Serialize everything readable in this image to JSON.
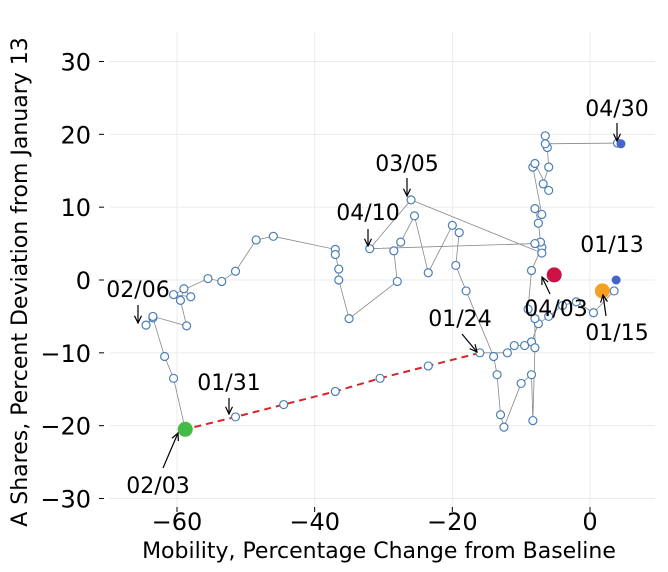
{
  "chart_data": {
    "type": "scatter",
    "title": "",
    "xlabel": "Mobility, Percentage Change from Baseline",
    "ylabel": "A Shares, Percent Deviation from January 13",
    "xlim": [
      -70,
      10
    ],
    "ylim": [
      -30,
      32
    ],
    "xticks": [
      -60,
      -40,
      -20,
      0
    ],
    "yticks": [
      -30,
      -20,
      -10,
      0,
      10,
      20,
      30
    ],
    "grid": true,
    "legend": "none",
    "colors": {
      "marker_edge": "#4a7fb5",
      "path": "#888888",
      "dashed_segment": "#d62728",
      "highlight_0113": "#4466cc",
      "highlight_0115": "#f5a020",
      "highlight_0203": "#44bb44",
      "highlight_0403": "#cc1144",
      "highlight_0430": "#4466cc"
    },
    "trajectory": [
      [
        1.8,
        -1.8
      ],
      [
        3.5,
        -1.5
      ],
      [
        0.5,
        -4.5
      ],
      [
        -2,
        -3
      ],
      [
        -4,
        -3.5
      ],
      [
        -6,
        -5
      ],
      [
        -7.5,
        -6
      ],
      [
        -8.5,
        -8.5
      ],
      [
        -9.5,
        -9
      ],
      [
        -11,
        -9
      ],
      [
        -12,
        -10
      ],
      [
        -16,
        -10
      ],
      [
        -23.5,
        -11.8
      ],
      [
        -30.5,
        -13.5
      ],
      [
        -37,
        -15.3
      ],
      [
        -44.5,
        -17.1
      ],
      [
        -51.5,
        -18.8
      ],
      [
        -58.8,
        -20.5
      ],
      [
        -60.5,
        -13.5
      ],
      [
        -61.8,
        -10.5
      ],
      [
        -63.5,
        -5.2
      ],
      [
        -64.5,
        -6.2
      ],
      [
        -63.5,
        -5
      ],
      [
        -58.6,
        -6.3
      ],
      [
        -59.5,
        -2.8
      ],
      [
        -59,
        -1.2
      ],
      [
        -58,
        -2.3
      ],
      [
        -60.5,
        -2
      ],
      [
        -55.5,
        0.2
      ],
      [
        -53.5,
        -0.2
      ],
      [
        -51.5,
        1.2
      ],
      [
        -48.5,
        5.5
      ],
      [
        -46,
        6
      ],
      [
        -37,
        4.2
      ],
      [
        -37,
        3.5
      ],
      [
        -36.5,
        1.5
      ],
      [
        -36.5,
        0
      ],
      [
        -35,
        -5.3
      ],
      [
        -28,
        -0.2
      ],
      [
        -28.5,
        4
      ],
      [
        -27.5,
        5.2
      ],
      [
        -25.5,
        8.8
      ],
      [
        -23.5,
        1
      ],
      [
        -20,
        7.5
      ],
      [
        -19,
        6.5
      ],
      [
        -19.5,
        2
      ],
      [
        -18,
        -1.5
      ],
      [
        -14,
        -10.5
      ],
      [
        -13.5,
        -13
      ],
      [
        -13,
        -18.5
      ],
      [
        -12.5,
        -20.2
      ],
      [
        -10,
        -14.2
      ],
      [
        -8.5,
        -13
      ],
      [
        -8.3,
        -19.3
      ],
      [
        -8,
        -9.3
      ],
      [
        -8,
        -5.3
      ],
      [
        -9,
        -4
      ],
      [
        -8.5,
        1.3
      ],
      [
        -7,
        4.5
      ],
      [
        -7.2,
        5.2
      ],
      [
        -8,
        5
      ],
      [
        -32,
        4.3
      ],
      [
        -26,
        11
      ],
      [
        -7,
        3.7
      ],
      [
        -7.5,
        7.8
      ],
      [
        -8,
        9.8
      ],
      [
        -7,
        9
      ],
      [
        -8.3,
        15.5
      ],
      [
        -8,
        16
      ],
      [
        -6,
        12.3
      ],
      [
        -6.8,
        13.2
      ],
      [
        -6,
        15.5
      ],
      [
        -6.2,
        18.2
      ],
      [
        -6.5,
        19.8
      ],
      [
        -6.5,
        18.7
      ],
      [
        4,
        18.8
      ]
    ],
    "highlights": [
      {
        "label": "01/13",
        "x": 3.8,
        "y": 0
      },
      {
        "label": "01/15",
        "x": 1.8,
        "y": -1.5
      },
      {
        "label": "02/03",
        "x": -58.8,
        "y": -20.5
      },
      {
        "label": "04/03",
        "x": -5.2,
        "y": 0.7
      },
      {
        "label": "04/30",
        "x": 4.5,
        "y": 18.7
      }
    ],
    "annotations": [
      {
        "text": "01/13"
      },
      {
        "text": "01/15"
      },
      {
        "text": "01/24"
      },
      {
        "text": "01/31"
      },
      {
        "text": "02/03"
      },
      {
        "text": "02/06"
      },
      {
        "text": "03/05"
      },
      {
        "text": "04/03"
      },
      {
        "text": "04/10"
      },
      {
        "text": "04/30"
      }
    ]
  }
}
